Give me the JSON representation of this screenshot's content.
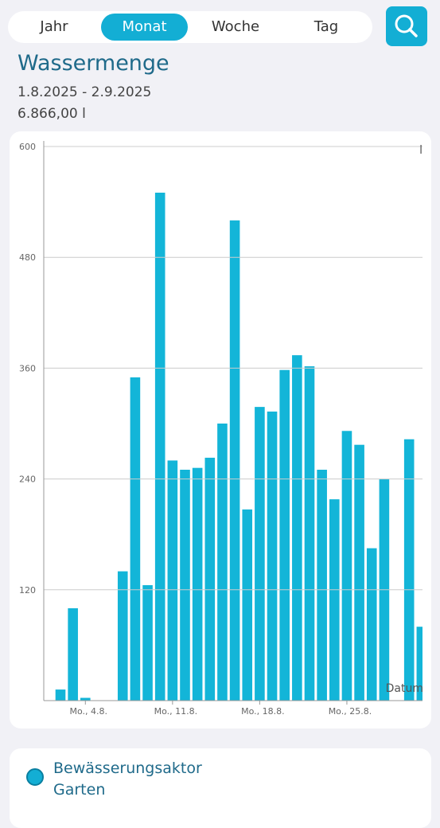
{
  "tabs": [
    "Jahr",
    "Monat",
    "Woche",
    "Tag"
  ],
  "header": {
    "title": "Wassermenge",
    "range": "1.8.2025 - 2.9.2025",
    "total": "6.866,00 l"
  },
  "chart_data": {
    "type": "bar",
    "y_unit": "l",
    "x_label": "Datum",
    "color": "#13b5d8",
    "categories": [
      null,
      null,
      "Mo., 4.8.",
      null,
      null,
      null,
      null,
      null,
      null,
      "Mo., 11.8.",
      null,
      null,
      null,
      null,
      null,
      null,
      "Mo., 18.8.",
      null,
      null,
      null,
      null,
      null,
      null,
      "Mo., 25.8.",
      null,
      null,
      null,
      null,
      null,
      null
    ],
    "values": [
      12,
      100,
      3,
      0,
      0,
      140,
      350,
      125,
      550,
      260,
      250,
      252,
      263,
      300,
      520,
      207,
      318,
      313,
      358,
      374,
      362,
      250,
      218,
      292,
      277,
      165,
      240,
      0,
      283,
      80
    ],
    "ylim": [
      0,
      600
    ],
    "yticks": [
      120,
      240,
      360,
      480,
      600
    ],
    "grid": true
  },
  "legend": {
    "label": "Bewässerungsaktor Garten"
  }
}
